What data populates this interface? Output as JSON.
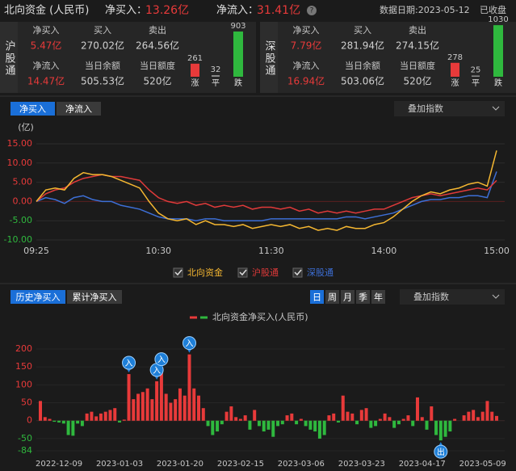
{
  "header": {
    "title": "北向资金 (人民币)",
    "net_buy_label": "净买入：",
    "net_buy": "13.26亿",
    "net_inflow_label": "净流入：",
    "net_inflow": "31.41亿",
    "help": "?",
    "date": "数据日期:2023-05-12",
    "status": "已收盘"
  },
  "panels": [
    {
      "name": "沪股通",
      "fields": [
        {
          "label": "净买入",
          "value": "5.47亿"
        },
        {
          "label": "买入",
          "value": "270.02亿"
        },
        {
          "label": "卖出",
          "value": "264.56亿"
        },
        {
          "label": "净流入",
          "value": "14.47亿"
        },
        {
          "label": "当日余额",
          "value": "505.53亿"
        },
        {
          "label": "当日额度",
          "value": "520亿"
        }
      ],
      "breadth": {
        "categories": [
          "涨",
          "平",
          "跌"
        ],
        "values": [
          261,
          32,
          903
        ],
        "colors": [
          "#e83a3a",
          "#8a8a8a",
          "#2fb83e"
        ]
      }
    },
    {
      "name": "深股通",
      "fields": [
        {
          "label": "净买入",
          "value": "7.79亿"
        },
        {
          "label": "买入",
          "value": "281.94亿"
        },
        {
          "label": "卖出",
          "value": "274.15亿"
        },
        {
          "label": "净流入",
          "value": "16.94亿"
        },
        {
          "label": "当日余额",
          "value": "503.06亿"
        },
        {
          "label": "当日额度",
          "value": "520亿"
        }
      ],
      "breadth": {
        "categories": [
          "涨",
          "平",
          "跌"
        ],
        "values": [
          278,
          25,
          1030
        ],
        "colors": [
          "#e83a3a",
          "#8a8a8a",
          "#2fb83e"
        ]
      }
    }
  ],
  "intraday": {
    "tabs": {
      "items": [
        "净买入",
        "净流入"
      ],
      "active": 0
    },
    "overlay": "叠加指数"
  },
  "history": {
    "tabs": {
      "items": [
        "历史净买入",
        "累计净买入"
      ],
      "active": 0
    },
    "periods": {
      "items": [
        "日",
        "周",
        "月",
        "季",
        "年"
      ],
      "active": 0
    },
    "overlay": "叠加指数"
  },
  "chart_data": [
    {
      "type": "line",
      "y_unit": "(亿)",
      "categories": [
        "09:25",
        null,
        null,
        null,
        null,
        null,
        null,
        null,
        null,
        null,
        null,
        null,
        null,
        "10:30",
        null,
        null,
        null,
        null,
        null,
        null,
        null,
        null,
        null,
        null,
        null,
        "11:30",
        null,
        null,
        null,
        null,
        null,
        null,
        null,
        null,
        null,
        null,
        null,
        "14:00",
        null,
        null,
        null,
        null,
        null,
        null,
        null,
        null,
        null,
        null,
        null,
        "15:00"
      ],
      "series": [
        {
          "name": "北向资金",
          "color": "#f5b731",
          "values": [
            0,
            3,
            3.5,
            3,
            6,
            7.5,
            7,
            7,
            6.5,
            5.5,
            4.5,
            3.5,
            0,
            -3,
            -4.5,
            -5,
            -4.5,
            -6,
            -5,
            -6,
            -6,
            -6.5,
            -6,
            -7,
            -6.5,
            -6,
            -6.5,
            -6,
            -7,
            -6.5,
            -7.5,
            -7,
            -7.5,
            -6.5,
            -7,
            -7,
            -6,
            -5.5,
            -4,
            -2,
            0,
            1.5,
            2.5,
            2,
            3,
            3.5,
            4.5,
            5,
            4,
            13.26
          ]
        },
        {
          "name": "沪股通",
          "color": "#e03a3a",
          "values": [
            0,
            2,
            3,
            3.5,
            5,
            6,
            6.5,
            7,
            6.5,
            6.5,
            6,
            5.5,
            3,
            1,
            0,
            -0.5,
            0,
            -1,
            -0.5,
            -1.5,
            -1,
            -1.5,
            -1,
            -2,
            -1.5,
            -1.5,
            -2,
            -1.5,
            -2.5,
            -2,
            -3,
            -2.5,
            -3,
            -2.5,
            -3,
            -2.5,
            -2,
            -2,
            -1,
            0,
            1,
            1.5,
            2,
            1.5,
            2,
            2.5,
            3,
            3.5,
            3,
            5.47
          ]
        },
        {
          "name": "深股通",
          "color": "#3d6fd6",
          "values": [
            0,
            1,
            0.5,
            -0.5,
            1,
            1.5,
            0.5,
            0,
            0,
            -1,
            -1.5,
            -2,
            -3,
            -4,
            -4.5,
            -4.5,
            -4.5,
            -5,
            -4.5,
            -4.5,
            -5,
            -5,
            -5,
            -5,
            -5,
            -4.5,
            -4.5,
            -4.5,
            -4.5,
            -4.5,
            -4.5,
            -4.5,
            -4.5,
            -4,
            -4,
            -4.5,
            -4,
            -3.5,
            -3,
            -2,
            -1,
            0,
            0.5,
            0.5,
            1,
            1,
            1.5,
            1.5,
            1,
            7.79
          ]
        }
      ],
      "ylim": [
        -10,
        15
      ],
      "yticks": [
        {
          "value": 15,
          "label": "15.00"
        },
        {
          "value": 10,
          "label": "10.00"
        },
        {
          "value": 5,
          "label": "5.00"
        },
        {
          "value": 0,
          "label": "0.00"
        },
        {
          "value": -5,
          "label": "-5.00"
        },
        {
          "value": -10,
          "label": "-10.00"
        }
      ],
      "grid": true
    },
    {
      "type": "bar",
      "categories": [
        null,
        null,
        null,
        null,
        "2022-12-09",
        null,
        null,
        null,
        null,
        null,
        null,
        null,
        null,
        null,
        null,
        null,
        null,
        "2023-01-03",
        null,
        null,
        null,
        null,
        null,
        null,
        null,
        null,
        null,
        null,
        null,
        null,
        "2023-01-20",
        null,
        null,
        null,
        null,
        null,
        null,
        null,
        null,
        null,
        null,
        null,
        null,
        "2023-02-15",
        null,
        null,
        null,
        null,
        null,
        null,
        null,
        null,
        null,
        null,
        null,
        null,
        "2023-03-06",
        null,
        null,
        null,
        null,
        null,
        null,
        null,
        null,
        null,
        null,
        null,
        null,
        "2023-03-23",
        null,
        null,
        null,
        null,
        null,
        null,
        null,
        null,
        null,
        null,
        null,
        null,
        "2023-04-17",
        null,
        null,
        null,
        null,
        null,
        null,
        null,
        null,
        null,
        null,
        null,
        null,
        "2023-05-09",
        null,
        null,
        null
      ],
      "series": [
        {
          "name": "北向资金净买入(人民币)",
          "color": "#e83a3a",
          "negative_color": "#2fb83e",
          "values": [
            55,
            10,
            5,
            -3,
            -5,
            -8,
            -40,
            -42,
            -8,
            -15,
            20,
            25,
            12,
            20,
            25,
            30,
            35,
            -5,
            3,
            130,
            60,
            75,
            80,
            90,
            60,
            110,
            140,
            75,
            50,
            60,
            90,
            70,
            185,
            90,
            70,
            35,
            -15,
            -40,
            -30,
            -10,
            25,
            40,
            10,
            5,
            15,
            -25,
            30,
            -15,
            -30,
            -25,
            -45,
            -15,
            -10,
            15,
            20,
            -10,
            5,
            -15,
            -25,
            -30,
            -50,
            -40,
            15,
            20,
            -5,
            70,
            25,
            20,
            -10,
            30,
            35,
            -20,
            -15,
            5,
            20,
            10,
            -20,
            -10,
            5,
            15,
            -15,
            65,
            10,
            -25,
            40,
            -40,
            -55,
            -45,
            -30,
            5,
            0,
            15,
            25,
            30,
            10,
            25,
            55,
            25,
            13.26
          ]
        }
      ],
      "signal_labels": [
        null,
        null,
        null,
        null,
        null,
        null,
        null,
        null,
        null,
        null,
        null,
        null,
        null,
        null,
        null,
        null,
        null,
        null,
        null,
        "入",
        null,
        null,
        null,
        null,
        null,
        "入",
        "入",
        null,
        null,
        null,
        null,
        null,
        "入",
        null,
        null,
        null,
        null,
        null,
        null,
        null,
        null,
        null,
        null,
        null,
        null,
        null,
        null,
        null,
        null,
        null,
        null,
        null,
        null,
        null,
        null,
        null,
        null,
        null,
        null,
        null,
        null,
        null,
        null,
        null,
        null,
        null,
        null,
        null,
        null,
        null,
        null,
        null,
        null,
        null,
        null,
        null,
        null,
        null,
        null,
        null,
        null,
        null,
        null,
        null,
        null,
        null,
        "出",
        null,
        null,
        null,
        null,
        null,
        null,
        null,
        null,
        null,
        null,
        null,
        null
      ],
      "ylim": [
        -84,
        200
      ],
      "yticks": [
        200,
        150,
        100,
        50,
        0,
        -50,
        -84
      ],
      "grid": true
    }
  ]
}
